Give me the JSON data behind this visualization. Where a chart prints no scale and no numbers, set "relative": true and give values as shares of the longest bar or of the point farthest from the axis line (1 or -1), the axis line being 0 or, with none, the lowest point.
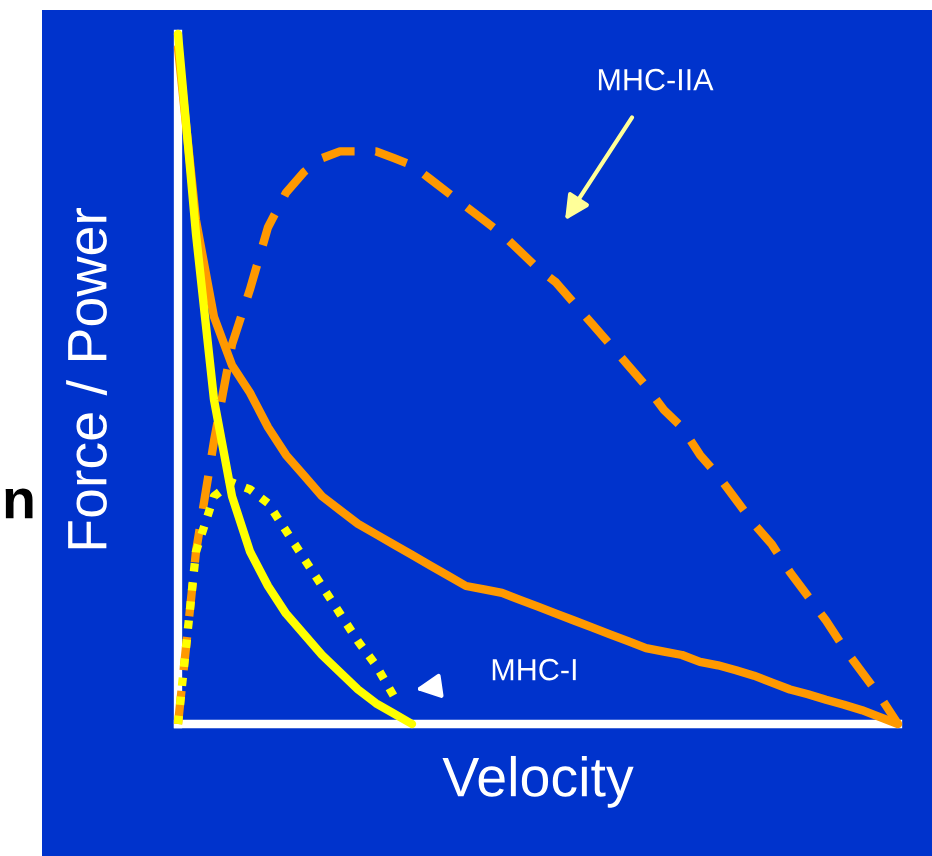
{
  "chart_data": {
    "type": "line",
    "relative": true,
    "xlabel": "Velocity",
    "ylabel": "Force / Power",
    "categories": [
      null,
      null,
      null,
      null,
      null,
      null,
      null,
      null,
      null,
      null,
      null,
      null,
      null,
      null,
      null,
      null,
      null,
      null,
      null,
      null,
      null,
      null,
      null,
      null,
      null,
      null,
      null,
      null,
      null,
      null,
      null,
      null,
      null,
      null,
      null,
      null,
      null,
      null,
      null,
      null,
      null
    ],
    "series": [
      {
        "color": "#ff9900",
        "line_style": "dashed",
        "values": [
          0,
          0.25,
          0.41,
          0.55,
          0.63,
          0.72,
          0.77,
          0.8,
          0.82,
          0.83,
          0.83,
          0.83,
          0.82,
          0.81,
          0.79,
          0.77,
          0.75,
          0.73,
          0.71,
          0.685,
          0.66,
          0.64,
          0.61,
          0.58,
          0.55,
          0.52,
          0.49,
          0.455,
          0.43,
          0.39,
          0.36,
          0.325,
          0.29,
          0.26,
          0.22,
          0.185,
          0.15,
          0.11,
          0.075,
          0.04,
          0
        ]
      },
      {
        "color": "#ff9900",
        "line_style": "solid",
        "values": [
          0.98,
          0.73,
          0.59,
          0.52,
          0.48,
          0.43,
          0.39,
          0.36,
          0.33,
          0.31,
          0.29,
          0.275,
          0.26,
          0.245,
          0.23,
          0.215,
          0.2,
          0.195,
          0.19,
          0.18,
          0.17,
          0.16,
          0.15,
          0.14,
          0.13,
          0.12,
          0.11,
          0.105,
          0.1,
          0.09,
          0.085,
          0.078,
          0.07,
          0.06,
          0.05,
          0.043,
          0.035,
          0.028,
          0.02,
          0.01,
          0
        ]
      },
      {
        "color": "#ffff00",
        "line_style": "dotted",
        "values": [
          0,
          0.25,
          0.33,
          0.35,
          0.34,
          0.32,
          0.28,
          0.24,
          0.2,
          0.16,
          0.12,
          0.085,
          0.04,
          null,
          null,
          null,
          null,
          null,
          null,
          null,
          null,
          null,
          null,
          null,
          null,
          null,
          null,
          null,
          null,
          null,
          null,
          null,
          null,
          null,
          null,
          null,
          null,
          null,
          null,
          null,
          null
        ]
      },
      {
        "color": "#ffff00",
        "line_style": "solid",
        "values": [
          1.0,
          0.71,
          0.47,
          0.33,
          0.25,
          0.2,
          0.16,
          0.13,
          0.1,
          0.075,
          0.05,
          0.03,
          0.015,
          0,
          null,
          null,
          null,
          null,
          null,
          null,
          null,
          null,
          null,
          null,
          null,
          null,
          null,
          null,
          null,
          null,
          null,
          null,
          null,
          null,
          null,
          null,
          null,
          null,
          null,
          null,
          null
        ]
      }
    ],
    "annotations": [
      "MHC-IIA",
      "MHC-I",
      "n"
    ],
    "legend": false,
    "grid": false
  }
}
